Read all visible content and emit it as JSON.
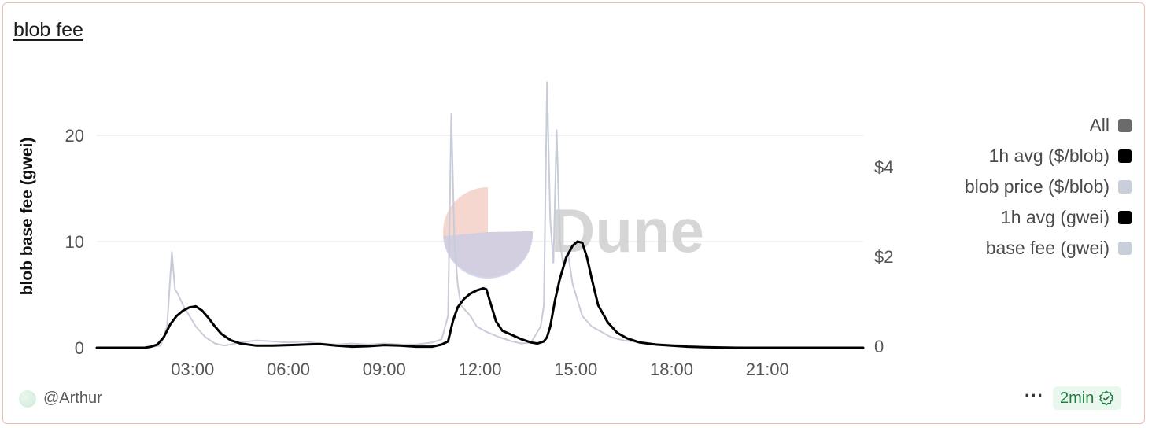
{
  "card": {
    "title": "blob fee"
  },
  "footer": {
    "author": "@Arthur",
    "more": "···",
    "refresh": "2min"
  },
  "watermark": {
    "text": "Dune"
  },
  "colors": {
    "accent_border": "#ebbfad",
    "avg_line": "#000000",
    "base_fee": "#c8ccd9",
    "grid": "#e6e6e6"
  },
  "chart_data": {
    "type": "line",
    "ylabel": "blob base fee (gwei)",
    "ylim": [
      0,
      20
    ],
    "y_ticks": [
      0,
      10,
      20
    ],
    "y2_ticks": [
      "0",
      "$2",
      "$4"
    ],
    "x_ticks": [
      "03:00",
      "06:00",
      "09:00",
      "12:00",
      "15:00",
      "18:00",
      "21:00"
    ],
    "xlim_hours": [
      0,
      24
    ],
    "grid": true,
    "legend_position": "right",
    "legend": [
      {
        "name": "All",
        "color": "#6b6b6b"
      },
      {
        "name": "1h avg ($/blob)",
        "color": "#000000"
      },
      {
        "name": "blob price ($/blob)",
        "color": "#c9cedb"
      },
      {
        "name": "1h avg (gwei)",
        "color": "#000000"
      },
      {
        "name": "base fee (gwei)",
        "color": "#c9cedb"
      }
    ],
    "series": [
      {
        "name": "base fee (gwei)",
        "x": [
          0,
          1.5,
          2.0,
          2.2,
          2.35,
          2.45,
          2.55,
          2.7,
          2.9,
          3.1,
          3.4,
          3.7,
          4.0,
          4.5,
          5.0,
          5.5,
          6.0,
          6.5,
          7.0,
          7.5,
          8.0,
          8.5,
          9.0,
          9.5,
          10.0,
          10.5,
          10.8,
          11.0,
          11.1,
          11.2,
          11.3,
          11.4,
          11.55,
          11.7,
          11.9,
          12.2,
          12.6,
          13.0,
          13.3,
          13.6,
          13.9,
          14.0,
          14.1,
          14.2,
          14.3,
          14.4,
          14.5,
          14.6,
          14.75,
          14.9,
          15.0,
          15.2,
          15.5,
          15.8,
          16.1,
          16.5,
          17.0,
          17.5,
          18.0,
          18.5,
          19.0,
          20.0,
          21.0,
          22.0,
          23.0,
          24.0
        ],
        "values": [
          0,
          0,
          0.2,
          2.0,
          9.0,
          5.5,
          5.0,
          4.0,
          3.0,
          2.0,
          1.0,
          0.4,
          0.2,
          0.5,
          0.7,
          0.6,
          0.5,
          0.6,
          0.4,
          0.3,
          0.4,
          0.3,
          0.4,
          0.3,
          0.3,
          0.5,
          0.8,
          3.0,
          22.0,
          10.0,
          6.0,
          4.0,
          3.5,
          3.0,
          2.0,
          1.5,
          1.0,
          0.6,
          0.4,
          0.5,
          2.0,
          4.0,
          25.0,
          12.0,
          8.0,
          20.5,
          10.0,
          8.0,
          9.0,
          6.0,
          5.0,
          3.0,
          2.0,
          1.5,
          1.0,
          0.7,
          0.5,
          0.3,
          0.3,
          0.2,
          0.1,
          0.05,
          0,
          0,
          0,
          0
        ]
      },
      {
        "name": "1h avg (gwei)",
        "x": [
          0,
          1.5,
          1.7,
          1.9,
          2.1,
          2.3,
          2.5,
          2.7,
          2.9,
          3.1,
          3.3,
          3.5,
          3.7,
          3.9,
          4.2,
          4.5,
          5.0,
          5.5,
          6.0,
          6.5,
          7.0,
          7.5,
          8.0,
          8.5,
          9.0,
          9.5,
          10.0,
          10.5,
          10.8,
          11.0,
          11.15,
          11.3,
          11.5,
          11.7,
          11.9,
          12.0,
          12.1,
          12.2,
          12.35,
          12.5,
          12.7,
          13.0,
          13.3,
          13.6,
          13.8,
          14.0,
          14.1,
          14.2,
          14.35,
          14.5,
          14.7,
          14.9,
          15.05,
          15.2,
          15.35,
          15.5,
          15.7,
          16.0,
          16.3,
          16.6,
          17.0,
          17.5,
          18.0,
          18.5,
          19.0,
          20.0,
          21.0,
          22.0,
          23.0,
          24.0
        ],
        "values": [
          0,
          0,
          0.1,
          0.3,
          1.0,
          2.2,
          3.0,
          3.5,
          3.8,
          3.9,
          3.5,
          2.8,
          2.0,
          1.3,
          0.7,
          0.4,
          0.2,
          0.2,
          0.25,
          0.3,
          0.35,
          0.2,
          0.1,
          0.15,
          0.25,
          0.2,
          0.1,
          0.1,
          0.3,
          0.6,
          2.5,
          3.8,
          4.6,
          5.1,
          5.4,
          5.5,
          5.6,
          5.5,
          4.0,
          2.5,
          1.6,
          1.2,
          0.8,
          0.5,
          0.4,
          0.6,
          1.0,
          2.0,
          4.5,
          6.5,
          8.5,
          9.6,
          10.0,
          9.9,
          8.5,
          6.5,
          4.0,
          2.4,
          1.4,
          0.9,
          0.5,
          0.3,
          0.2,
          0.1,
          0.05,
          0,
          0,
          0,
          0,
          0
        ]
      }
    ]
  }
}
